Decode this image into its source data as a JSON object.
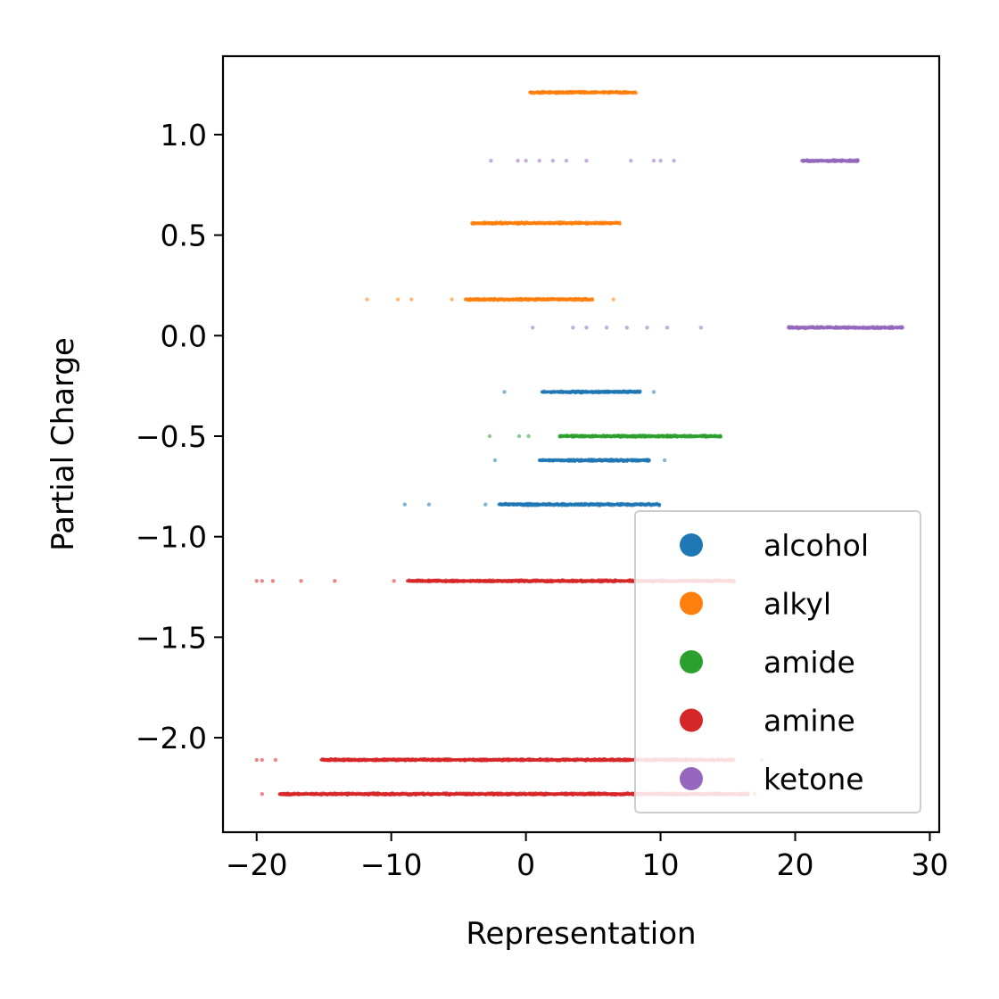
{
  "chart_data": {
    "type": "scatter",
    "xlabel": "Representation",
    "ylabel": "Partial Charge",
    "xlim": [
      -22.5,
      30.7
    ],
    "ylim": [
      -2.47,
      1.39
    ],
    "xticks": [
      -20,
      -10,
      0,
      10,
      20,
      30
    ],
    "xtick_labels": [
      "−20",
      "−10",
      "0",
      "10",
      "20",
      "30"
    ],
    "yticks": [
      -2.0,
      -1.5,
      -1.0,
      -0.5,
      0.0,
      0.5,
      1.0
    ],
    "ytick_labels": [
      "−2.0",
      "−1.5",
      "−1.0",
      "−0.5",
      "0.0",
      "0.5",
      "1.0"
    ],
    "grid": false,
    "legend_position": "lower right",
    "series": [
      {
        "name": "alcohol",
        "color": "#1f77b4",
        "rows": [
          {
            "y": -0.28,
            "dense": [
              1.2,
              8.5
            ],
            "sparse": [
              -1.6,
              9.5
            ]
          },
          {
            "y": -0.62,
            "dense": [
              1.0,
              9.2
            ],
            "sparse": [
              -2.3,
              10.3
            ]
          },
          {
            "y": -0.84,
            "dense": [
              -2.0,
              10.0
            ],
            "sparse": [
              -9.0,
              -7.2,
              -3.0
            ]
          }
        ]
      },
      {
        "name": "alkyl",
        "color": "#ff7f0e",
        "rows": [
          {
            "y": 1.21,
            "dense": [
              0.3,
              8.2
            ],
            "sparse": []
          },
          {
            "y": 0.56,
            "dense": [
              -4.0,
              7.0
            ],
            "sparse": []
          },
          {
            "y": 0.18,
            "dense": [
              -4.5,
              5.0
            ],
            "sparse": [
              -11.8,
              -9.5,
              -8.5,
              -5.5,
              6.5
            ]
          }
        ]
      },
      {
        "name": "amide",
        "color": "#2ca02c",
        "rows": [
          {
            "y": -0.5,
            "dense": [
              2.5,
              14.5
            ],
            "sparse": [
              -2.7,
              -0.5,
              0.2
            ]
          }
        ]
      },
      {
        "name": "amine",
        "color": "#d62728",
        "rows": [
          {
            "y": -1.22,
            "dense": [
              -8.8,
              15.5
            ],
            "sparse": [
              -20.0,
              -19.6,
              -18.8,
              -16.7,
              -14.2,
              -9.8
            ]
          },
          {
            "y": -2.11,
            "dense": [
              -15.2,
              15.5
            ],
            "sparse": [
              -20.0,
              -19.6,
              -18.6,
              17.5
            ]
          },
          {
            "y": -2.28,
            "dense": [
              -18.3,
              16.5
            ],
            "sparse": [
              -19.6,
              17.0
            ]
          }
        ]
      },
      {
        "name": "ketone",
        "color": "#9467bd",
        "rows": [
          {
            "y": 0.87,
            "dense": [
              20.5,
              24.7
            ],
            "sparse": [
              -2.6,
              -0.6,
              0.0,
              1.0,
              2.0,
              3.0,
              4.5,
              7.8,
              9.5,
              10.0,
              11.0
            ]
          },
          {
            "y": 0.04,
            "dense": [
              19.5,
              28.0
            ],
            "sparse": [
              0.5,
              3.5,
              4.5,
              6.0,
              7.5,
              9.0,
              10.5,
              13.0
            ]
          }
        ]
      }
    ]
  }
}
